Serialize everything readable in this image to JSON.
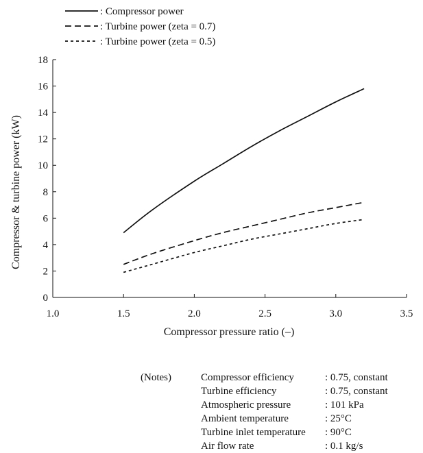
{
  "chart_data": {
    "type": "line",
    "title": "",
    "xlabel": "Compressor pressure ratio  (–)",
    "ylabel": "Compressor & turbine power  (kW)",
    "xlim": [
      1.0,
      3.5
    ],
    "ylim": [
      0,
      18
    ],
    "x_ticks": [
      "1.0",
      "1.5",
      "2.0",
      "2.5",
      "3.0",
      "3.5"
    ],
    "y_ticks": [
      "0",
      "2",
      "4",
      "6",
      "8",
      "10",
      "12",
      "14",
      "16",
      "18"
    ],
    "grid": false,
    "legend_position": "top-left, above plot",
    "series": [
      {
        "name": ": Compressor power",
        "style": "solid",
        "color": "#111111",
        "x": [
          1.5,
          1.7,
          2.0,
          2.2,
          2.4,
          2.6,
          2.8,
          3.0,
          3.2
        ],
        "y": [
          4.9,
          6.6,
          8.8,
          10.1,
          11.4,
          12.6,
          13.7,
          14.8,
          15.8
        ]
      },
      {
        "name": ": Turbine power (zeta = 0.7)",
        "style": "dashed",
        "color": "#111111",
        "x": [
          1.5,
          1.7,
          2.0,
          2.2,
          2.4,
          2.6,
          2.8,
          3.0,
          3.2
        ],
        "y": [
          2.5,
          3.3,
          4.3,
          4.9,
          5.4,
          5.9,
          6.4,
          6.8,
          7.2
        ]
      },
      {
        "name": ": Turbine power (zeta = 0.5)",
        "style": "dotted",
        "color": "#111111",
        "x": [
          1.5,
          1.7,
          2.0,
          2.2,
          2.4,
          2.6,
          2.8,
          3.0,
          3.2
        ],
        "y": [
          1.9,
          2.5,
          3.4,
          3.9,
          4.4,
          4.8,
          5.2,
          5.6,
          5.9
        ]
      }
    ]
  },
  "notes": {
    "header": "(Notes)",
    "rows": [
      {
        "label": "Compressor efficiency",
        "value": ": 0.75, constant"
      },
      {
        "label": "Turbine efficiency",
        "value": ": 0.75, constant"
      },
      {
        "label": "Atmospheric pressure",
        "value": ": 101 kPa"
      },
      {
        "label": "Ambient temperature",
        "value": ": 25°C"
      },
      {
        "label": "Turbine inlet temperature",
        "value": ": 90°C"
      },
      {
        "label": "Air flow rate",
        "value": ": 0.1 kg/s"
      }
    ]
  }
}
